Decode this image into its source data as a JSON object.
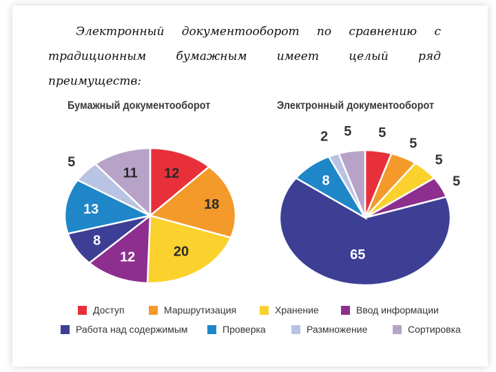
{
  "intro": {
    "line1": [
      "Электронный",
      "документооборот",
      "по",
      "сравнению",
      "с"
    ],
    "line2": [
      "традиционным",
      "бумажным",
      "имеет",
      "целый",
      "ряд"
    ],
    "line3": "преимуществ:"
  },
  "colors": {
    "access": "#e8303a",
    "routing": "#f39a2b",
    "storage": "#fbd12e",
    "input": "#8e2e8f",
    "content": "#3d3f95",
    "check": "#1f86c8",
    "copy": "#b9c3e3",
    "sort": "#b7a3c8"
  },
  "chart_data": [
    {
      "type": "pie",
      "title": "Бумажный документооборот",
      "slices": [
        {
          "key": "access",
          "label": "Доступ",
          "value": 12
        },
        {
          "key": "routing",
          "label": "Маршрутизация",
          "value": 18
        },
        {
          "key": "storage",
          "label": "Хранение",
          "value": 20
        },
        {
          "key": "input",
          "label": "Ввод информации",
          "value": 12
        },
        {
          "key": "content",
          "label": "Работа над содержимым",
          "value": 8
        },
        {
          "key": "check",
          "label": "Проверка",
          "value": 13
        },
        {
          "key": "copy",
          "label": "Размножение",
          "value": 5
        },
        {
          "key": "sort",
          "label": "Сортировка",
          "value": 11
        }
      ]
    },
    {
      "type": "pie",
      "title": "Электронный документооборот",
      "slices": [
        {
          "key": "access",
          "label": "Доступ",
          "value": 5
        },
        {
          "key": "routing",
          "label": "Маршрутизация",
          "value": 5
        },
        {
          "key": "storage",
          "label": "Хранение",
          "value": 5
        },
        {
          "key": "input",
          "label": "Ввод информации",
          "value": 5
        },
        {
          "key": "content",
          "label": "Работа над содержимым",
          "value": 65
        },
        {
          "key": "check",
          "label": "Проверка",
          "value": 8
        },
        {
          "key": "copy",
          "label": "Размножение",
          "value": 2
        },
        {
          "key": "sort",
          "label": "Сортировка",
          "value": 5
        }
      ]
    }
  ],
  "legend": [
    {
      "key": "access",
      "label": "Доступ"
    },
    {
      "key": "routing",
      "label": "Маршрутизация"
    },
    {
      "key": "storage",
      "label": "Хранение"
    },
    {
      "key": "input",
      "label": "Ввод информации"
    },
    {
      "key": "content",
      "label": "Работа над содержимым"
    },
    {
      "key": "check",
      "label": "Проверка"
    },
    {
      "key": "copy",
      "label": "Размножение"
    },
    {
      "key": "sort",
      "label": "Сортировка"
    }
  ]
}
